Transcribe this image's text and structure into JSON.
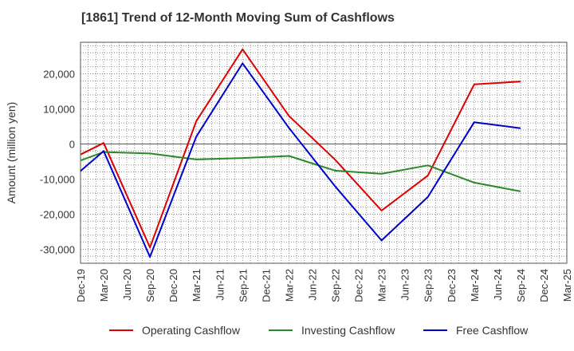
{
  "chart_data": {
    "type": "line",
    "title": "[1861]  Trend of 12-Month Moving Sum of Cashflows",
    "xlabel": "",
    "ylabel": "Amount (million yen)",
    "ylim": [
      -34000,
      29000
    ],
    "yticks": [
      -30000,
      -20000,
      -10000,
      0,
      10000,
      20000
    ],
    "ytick_labels": [
      "-30,000",
      "-20,000",
      "-10,000",
      "0",
      "10,000",
      "20,000"
    ],
    "categories": [
      "Dec-19",
      "Mar-20",
      "Jun-20",
      "Sep-20",
      "Dec-20",
      "Mar-21",
      "Jun-21",
      "Sep-21",
      "Dec-21",
      "Mar-22",
      "Jun-22",
      "Sep-22",
      "Dec-22",
      "Mar-23",
      "Jun-23",
      "Sep-23",
      "Dec-23",
      "Mar-24",
      "Jun-24",
      "Sep-24",
      "Dec-24",
      "Mar-25"
    ],
    "grid": true,
    "legend_position": "bottom",
    "series": [
      {
        "name": "Operating Cashflow",
        "color": "#dd0000",
        "points": [
          [
            "Dec-19",
            -3000
          ],
          [
            "Mar-20",
            300
          ],
          [
            "Sep-20",
            -29500
          ],
          [
            "Mar-21",
            6500
          ],
          [
            "Sep-21",
            27000
          ],
          [
            "Mar-22",
            8000
          ],
          [
            "Sep-22",
            -4500
          ],
          [
            "Mar-23",
            -19000
          ],
          [
            "Sep-23",
            -9000
          ],
          [
            "Mar-24",
            17000
          ],
          [
            "Sep-24",
            17800
          ]
        ]
      },
      {
        "name": "Investing Cashflow",
        "color": "#2a8a2a",
        "points": [
          [
            "Dec-19",
            -4700
          ],
          [
            "Mar-20",
            -2300
          ],
          [
            "Sep-20",
            -2700
          ],
          [
            "Mar-21",
            -4400
          ],
          [
            "Sep-21",
            -4000
          ],
          [
            "Mar-22",
            -3400
          ],
          [
            "Sep-22",
            -7600
          ],
          [
            "Mar-23",
            -8500
          ],
          [
            "Sep-23",
            -6100
          ],
          [
            "Mar-24",
            -11000
          ],
          [
            "Sep-24",
            -13500
          ]
        ]
      },
      {
        "name": "Free Cashflow",
        "color": "#0000cc",
        "points": [
          [
            "Dec-19",
            -7700
          ],
          [
            "Mar-20",
            -2000
          ],
          [
            "Sep-20",
            -32200
          ],
          [
            "Mar-21",
            2100
          ],
          [
            "Sep-21",
            23000
          ],
          [
            "Mar-22",
            4600
          ],
          [
            "Sep-22",
            -12100
          ],
          [
            "Mar-23",
            -27500
          ],
          [
            "Sep-23",
            -15100
          ],
          [
            "Mar-24",
            6200
          ],
          [
            "Sep-24",
            4500
          ]
        ]
      }
    ]
  }
}
